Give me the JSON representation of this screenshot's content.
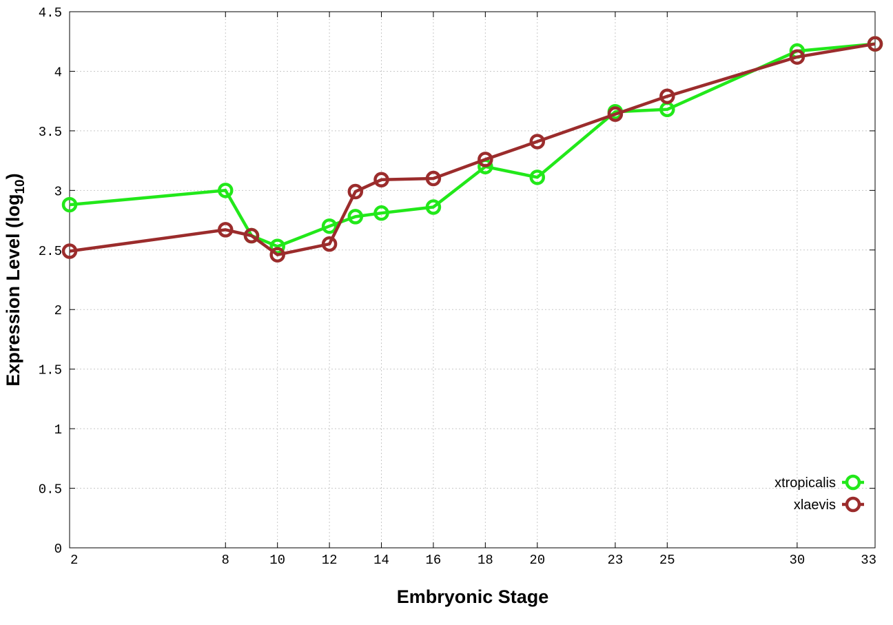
{
  "chart_data": {
    "type": "line",
    "xlabel": "Embryonic Stage",
    "ylabel_main": "Expression Level (log",
    "ylabel_sub": "10",
    "ylabel_close": ")",
    "xlim": [
      2,
      33
    ],
    "ylim": [
      0,
      4.5
    ],
    "grid": true,
    "legend_position": "bottom-right",
    "x_ticks": [
      2,
      8,
      10,
      12,
      14,
      16,
      18,
      20,
      23,
      25,
      30,
      33
    ],
    "y_ticks": [
      0,
      0.5,
      1,
      1.5,
      2,
      2.5,
      3,
      3.5,
      4,
      4.5
    ],
    "y_tick_labels": [
      "0",
      "0.5",
      "1",
      "1.5",
      "2",
      "2.5",
      "3",
      "3.5",
      "4",
      "4.5"
    ],
    "series": [
      {
        "name": "xtropicalis",
        "color": "#22e81a",
        "points": [
          [
            2,
            2.88
          ],
          [
            8,
            3.0
          ],
          [
            9,
            2.62
          ],
          [
            10,
            2.53
          ],
          [
            12,
            2.7
          ],
          [
            13,
            2.78
          ],
          [
            14,
            2.81
          ],
          [
            16,
            2.86
          ],
          [
            18,
            3.2
          ],
          [
            20,
            3.11
          ],
          [
            23,
            3.66
          ],
          [
            25,
            3.68
          ],
          [
            30,
            4.17
          ],
          [
            33,
            4.23
          ]
        ]
      },
      {
        "name": "xlaevis",
        "color": "#9b2c2c",
        "points": [
          [
            2,
            2.49
          ],
          [
            8,
            2.67
          ],
          [
            9,
            2.62
          ],
          [
            10,
            2.46
          ],
          [
            12,
            2.55
          ],
          [
            13,
            2.99
          ],
          [
            14,
            3.09
          ],
          [
            16,
            3.1
          ],
          [
            18,
            3.26
          ],
          [
            20,
            3.41
          ],
          [
            23,
            3.64
          ],
          [
            25,
            3.79
          ],
          [
            30,
            4.12
          ],
          [
            33,
            4.23
          ]
        ]
      }
    ]
  }
}
